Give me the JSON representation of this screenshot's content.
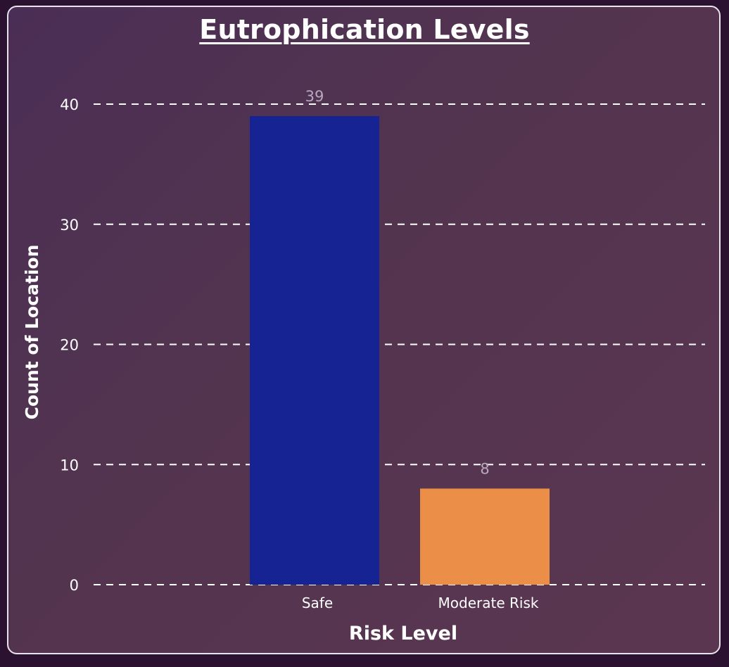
{
  "chart_data": {
    "type": "bar",
    "title": "Eutrophication Levels",
    "xlabel": "Risk Level",
    "ylabel": "Count of Location",
    "categories": [
      "Safe",
      "Moderate Risk"
    ],
    "values": [
      39,
      8
    ],
    "data_labels": [
      "39",
      "8"
    ],
    "colors": [
      "#162393",
      "#eb8f48"
    ],
    "ylim": [
      0,
      40
    ],
    "yticks": [
      "0",
      "10",
      "20",
      "30",
      "40"
    ],
    "grid": true,
    "grid_style": "dashed",
    "legend": "none"
  },
  "colors": {
    "frame_border": "#e9e3ee",
    "text": "#ffffff",
    "data_label": "#b9a9bd",
    "gridline": "#ffffff"
  }
}
